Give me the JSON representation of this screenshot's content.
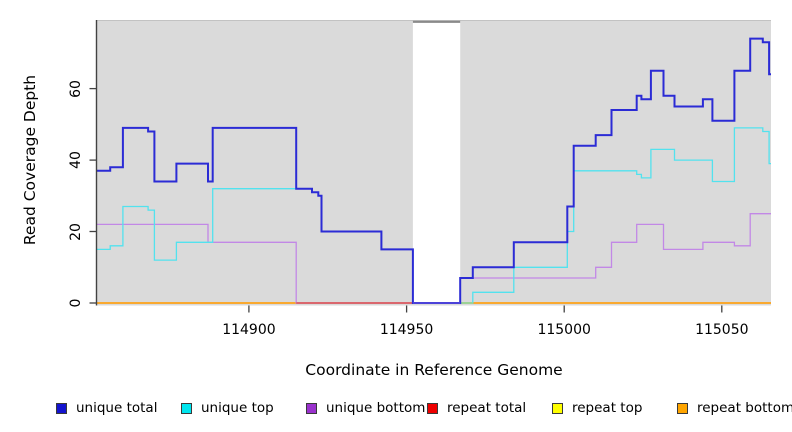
{
  "chart_data": {
    "type": "line",
    "subtype": "step",
    "title": "",
    "xlabel": "Coordinate in Reference Genome",
    "ylabel": "Read Coverage Depth",
    "xlim": [
      114851.8,
      115065.6
    ],
    "ylim": [
      -0.7,
      79.2
    ],
    "x_ticks": [
      114900,
      114950,
      115000,
      115050
    ],
    "y_ticks": [
      0,
      20,
      40,
      60
    ],
    "grid": "off",
    "plot_bg": "#DADADA",
    "plot_top_border": "#C2C2C2",
    "axis_color": "#424242",
    "text_color": "#000000",
    "legend_position": "bottom",
    "gap_region": {
      "from": 114952,
      "to": 114967,
      "fill": "#FFFFFF",
      "top_border": "#8A8A8A"
    },
    "series": [
      {
        "name": "unique total",
        "color": "#1414CE",
        "line_color": "#2B2BD5",
        "line_width": 2,
        "points": [
          [
            114851.8,
            37
          ],
          [
            114856,
            38
          ],
          [
            114860,
            49
          ],
          [
            114868,
            48
          ],
          [
            114870,
            34
          ],
          [
            114877,
            39
          ],
          [
            114887,
            34
          ],
          [
            114888.5,
            49
          ],
          [
            114915,
            32
          ],
          [
            114920,
            31
          ],
          [
            114922,
            30
          ],
          [
            114923,
            20
          ],
          [
            114942,
            15
          ],
          [
            114952,
            0
          ],
          [
            114967,
            7
          ],
          [
            114971,
            10
          ],
          [
            114984,
            17
          ],
          [
            115001,
            27
          ],
          [
            115003,
            44
          ],
          [
            115010,
            47
          ],
          [
            115015,
            54
          ],
          [
            115023,
            58
          ],
          [
            115024.5,
            57
          ],
          [
            115027.5,
            65
          ],
          [
            115031.5,
            58
          ],
          [
            115035,
            55
          ],
          [
            115044,
            57
          ],
          [
            115047,
            51
          ],
          [
            115054,
            65
          ],
          [
            115059,
            74
          ],
          [
            115063,
            73
          ],
          [
            115065,
            64
          ]
        ]
      },
      {
        "name": "unique top",
        "color": "#00E5EE",
        "line_color": "#52E2EE",
        "line_width": 1.3,
        "points": [
          [
            114851.8,
            15
          ],
          [
            114856,
            16
          ],
          [
            114860,
            27
          ],
          [
            114868,
            26
          ],
          [
            114870,
            12
          ],
          [
            114877,
            17
          ],
          [
            114888.5,
            32
          ],
          [
            114920,
            31
          ],
          [
            114922,
            30
          ],
          [
            114923,
            20
          ],
          [
            114942,
            15
          ],
          [
            114952,
            0
          ],
          [
            114971,
            3
          ],
          [
            114984,
            10
          ],
          [
            115001,
            20
          ],
          [
            115003,
            37
          ],
          [
            115023,
            36
          ],
          [
            115024.5,
            35
          ],
          [
            115027.5,
            43
          ],
          [
            115035,
            40
          ],
          [
            115047,
            34
          ],
          [
            115054,
            49
          ],
          [
            115063,
            48
          ],
          [
            115065,
            39
          ]
        ]
      },
      {
        "name": "unique bottom",
        "color": "#9A32CD",
        "line_color": "#C288E6",
        "line_width": 1.3,
        "points": [
          [
            114851.8,
            22
          ],
          [
            114887,
            17
          ],
          [
            114915,
            0
          ],
          [
            114967,
            7
          ],
          [
            115010,
            10
          ],
          [
            115015,
            17
          ],
          [
            115023,
            22
          ],
          [
            115031.5,
            15
          ],
          [
            115044,
            17
          ],
          [
            115054,
            16
          ],
          [
            115059,
            25
          ]
        ]
      },
      {
        "name": "repeat total",
        "color": "#EE0000",
        "line_color": "#EE0000",
        "line_width": 1.2,
        "points": [
          [
            114851.8,
            0
          ]
        ]
      },
      {
        "name": "repeat top",
        "color": "#FFFF00",
        "line_color": "#FFFF00",
        "line_width": 1.2,
        "points": [
          [
            114851.8,
            0
          ]
        ]
      },
      {
        "name": "repeat bottom",
        "color": "#FFA500",
        "line_color": "#FFA318",
        "line_width": 1.6,
        "points": [
          [
            114851.8,
            0
          ]
        ]
      }
    ],
    "baseline_overlays": [
      {
        "from": 114915,
        "to": 114952,
        "color": "#D6536D",
        "width": 1.6
      },
      {
        "from": 114967,
        "to": 114971,
        "color": "#90D79E",
        "width": 1.6
      },
      {
        "from": 114952,
        "to": 114967,
        "color": "#5246D9",
        "width": 1.8
      }
    ]
  }
}
